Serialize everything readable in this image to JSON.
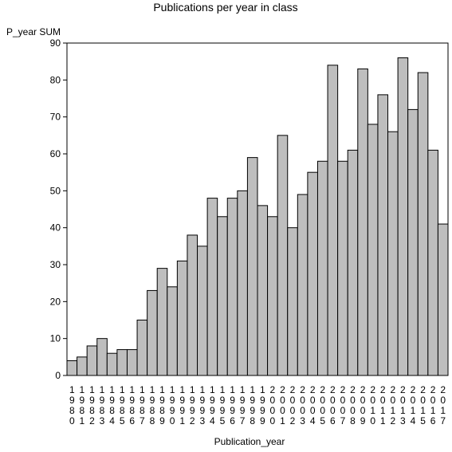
{
  "chart_data": {
    "type": "bar",
    "title": "Publications per year in class",
    "ylabel": "P_year SUM",
    "xlabel": "Publication_year",
    "ylim": [
      0,
      90
    ],
    "yticks": [
      0,
      10,
      20,
      30,
      40,
      50,
      60,
      70,
      80,
      90
    ],
    "categories": [
      "1980",
      "1981",
      "1982",
      "1983",
      "1984",
      "1985",
      "1986",
      "1987",
      "1988",
      "1989",
      "1990",
      "1991",
      "1992",
      "1993",
      "1994",
      "1995",
      "1996",
      "1997",
      "1998",
      "1999",
      "2000",
      "2001",
      "2002",
      "2003",
      "2004",
      "2005",
      "2006",
      "2007",
      "2008",
      "2009",
      "2010",
      "2011",
      "2012",
      "2013",
      "2014",
      "2015",
      "2016",
      "2017"
    ],
    "values": [
      4,
      5,
      8,
      10,
      6,
      7,
      7,
      15,
      23,
      29,
      24,
      31,
      38,
      35,
      48,
      43,
      48,
      50,
      59,
      46,
      43,
      65,
      40,
      49,
      55,
      58,
      84,
      58,
      61,
      83,
      68,
      76,
      66,
      86,
      72,
      82,
      61,
      41
    ],
    "colors": {
      "bar": "#bebebe",
      "stroke": "#000000"
    }
  }
}
